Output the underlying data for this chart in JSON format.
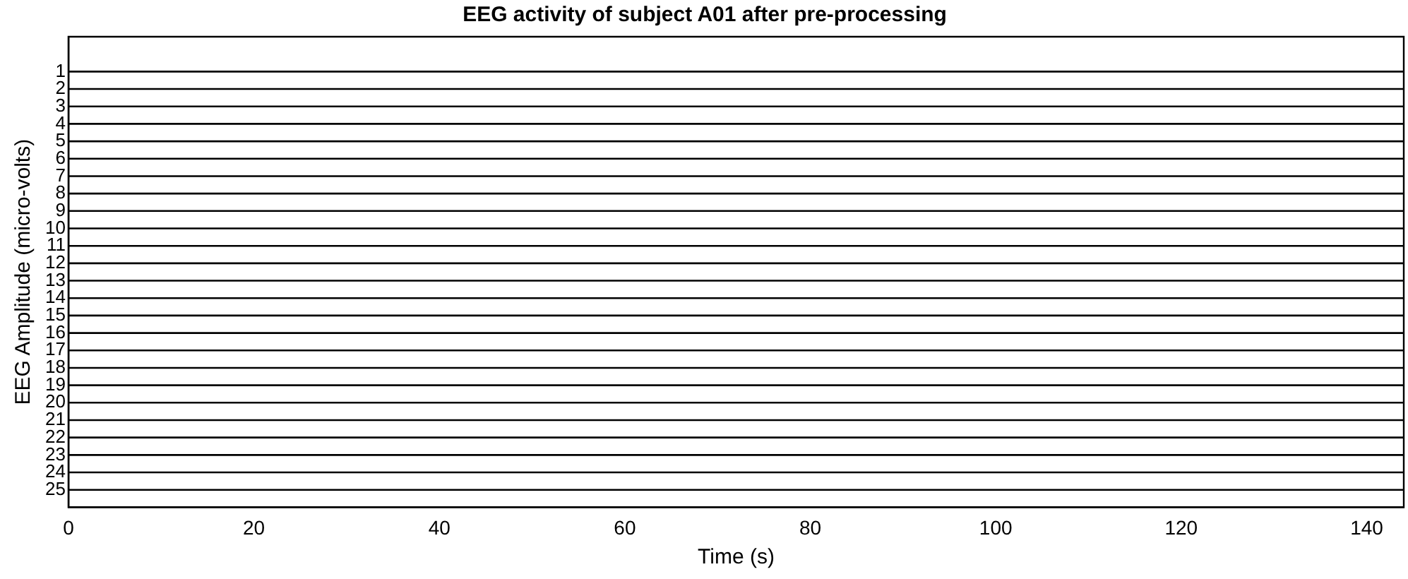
{
  "chart_data": {
    "type": "line",
    "title": "EEG activity of subject A01 after pre-processing",
    "xlabel": "Time (s)",
    "ylabel": "EEG Amplitude (micro-volts)",
    "x": [
      0,
      144
    ],
    "xlim": [
      0,
      144
    ],
    "xticks": [
      0,
      20,
      40,
      60,
      80,
      100,
      120,
      140
    ],
    "ylim": [
      26,
      -1
    ],
    "yticks": [
      1,
      2,
      3,
      4,
      5,
      6,
      7,
      8,
      9,
      10,
      11,
      12,
      13,
      14,
      15,
      16,
      17,
      18,
      19,
      20,
      21,
      22,
      23,
      24,
      25
    ],
    "grid": false,
    "legend": false,
    "marker": "none",
    "line_style": "solid",
    "series": [
      {
        "color": "#000000",
        "values": [
          1,
          1
        ]
      },
      {
        "color": "#000000",
        "values": [
          2,
          2
        ]
      },
      {
        "color": "#000000",
        "values": [
          3,
          3
        ]
      },
      {
        "color": "#000000",
        "values": [
          4,
          4
        ]
      },
      {
        "color": "#000000",
        "values": [
          5,
          5
        ]
      },
      {
        "color": "#000000",
        "values": [
          6,
          6
        ]
      },
      {
        "color": "#000000",
        "values": [
          7,
          7
        ]
      },
      {
        "color": "#000000",
        "values": [
          8,
          8
        ]
      },
      {
        "color": "#000000",
        "values": [
          9,
          9
        ]
      },
      {
        "color": "#000000",
        "values": [
          10,
          10
        ]
      },
      {
        "color": "#000000",
        "values": [
          11,
          11
        ]
      },
      {
        "color": "#000000",
        "values": [
          12,
          12
        ]
      },
      {
        "color": "#000000",
        "values": [
          13,
          13
        ]
      },
      {
        "color": "#000000",
        "values": [
          14,
          14
        ]
      },
      {
        "color": "#000000",
        "values": [
          15,
          15
        ]
      },
      {
        "color": "#000000",
        "values": [
          16,
          16
        ]
      },
      {
        "color": "#000000",
        "values": [
          17,
          17
        ]
      },
      {
        "color": "#000000",
        "values": [
          18,
          18
        ]
      },
      {
        "color": "#000000",
        "values": [
          19,
          19
        ]
      },
      {
        "color": "#000000",
        "values": [
          20,
          20
        ]
      },
      {
        "color": "#000000",
        "values": [
          21,
          21
        ]
      },
      {
        "color": "#000000",
        "values": [
          22,
          22
        ]
      },
      {
        "color": "#000000",
        "values": [
          23,
          23
        ]
      },
      {
        "color": "#000000",
        "values": [
          24,
          24
        ]
      },
      {
        "color": "#000000",
        "values": [
          25,
          25
        ]
      }
    ]
  }
}
